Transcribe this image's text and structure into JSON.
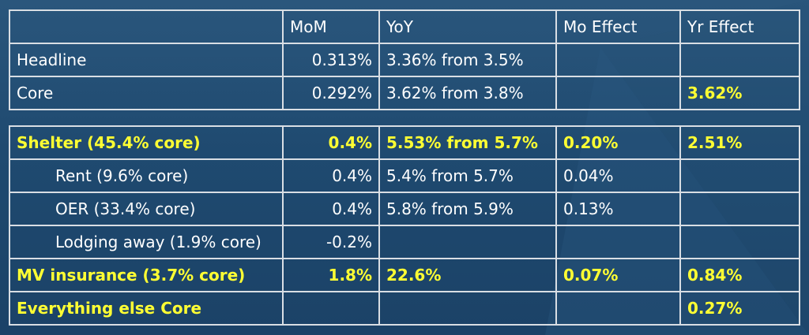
{
  "top_table": {
    "header": [
      "",
      "MoM",
      "YoY",
      "Mo Effect",
      "Yr Effect"
    ],
    "rows": [
      {
        "label": "Headline",
        "mom": "0.313%",
        "yoy": "3.36% from 3.5%",
        "mo_effect": "",
        "yr_effect": ""
      },
      {
        "label": "Core",
        "mom": "0.292%",
        "yoy": "3.62% from 3.8%",
        "mo_effect": "",
        "yr_effect": "3.62%"
      }
    ]
  },
  "bottom_table": {
    "rows": [
      {
        "label": "Shelter (45.4% core)",
        "mom": "0.4%",
        "yoy": "5.53% from 5.7%",
        "mo_effect": "0.20%",
        "yr_effect": "2.51%"
      },
      {
        "label": "Rent (9.6% core)",
        "mom": "0.4%",
        "yoy": "5.4% from 5.7%",
        "mo_effect": "0.04%",
        "yr_effect": ""
      },
      {
        "label": "OER (33.4% core)",
        "mom": "0.4%",
        "yoy": "5.8% from 5.9%",
        "mo_effect": "0.13%",
        "yr_effect": ""
      },
      {
        "label": "Lodging away (1.9% core)",
        "mom": "-0.2%",
        "yoy": "",
        "mo_effect": "",
        "yr_effect": ""
      },
      {
        "label": "MV insurance (3.7% core)",
        "mom": "1.8%",
        "yoy": "22.6%",
        "mo_effect": "0.07%",
        "yr_effect": "0.84%"
      },
      {
        "label": "Everything else Core",
        "mom": "",
        "yoy": "",
        "mo_effect": "",
        "yr_effect": "0.27%"
      }
    ]
  },
  "colors": {
    "background": "#1f4a70",
    "highlight": "#ffff33",
    "text": "#ffffff",
    "grid": "#d9dee4"
  }
}
